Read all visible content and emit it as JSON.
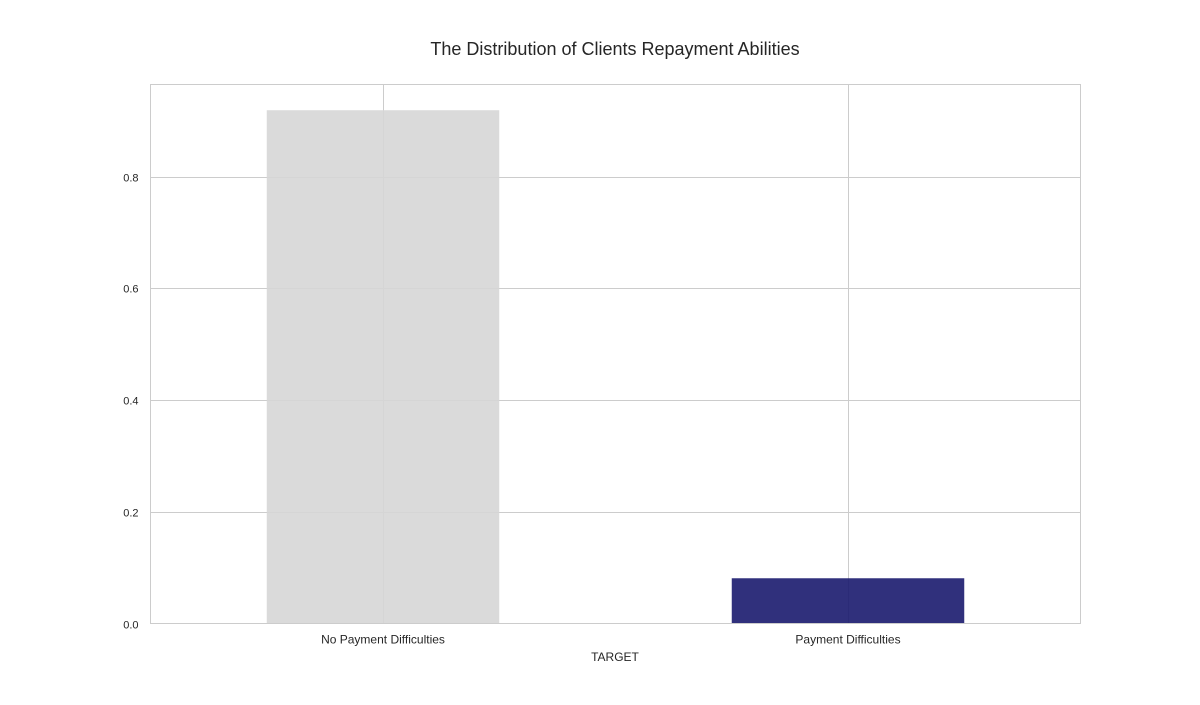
{
  "chart_data": {
    "type": "bar",
    "title": "The Distribution of Clients Repayment Abilities",
    "xlabel": "TARGET",
    "ylabel": "",
    "categories": [
      "No Payment Difficulties",
      "Payment Difficulties"
    ],
    "values": [
      0.919,
      0.081
    ],
    "colors": [
      "#d6d6d6",
      "#1a1a6e"
    ],
    "ylim": [
      0,
      0.965
    ],
    "yticks": [
      0.0,
      0.2,
      0.4,
      0.6,
      0.8
    ],
    "ytick_labels": [
      "0.0",
      "0.2",
      "0.4",
      "0.6",
      "0.8"
    ],
    "grid": true,
    "legend": "none"
  }
}
